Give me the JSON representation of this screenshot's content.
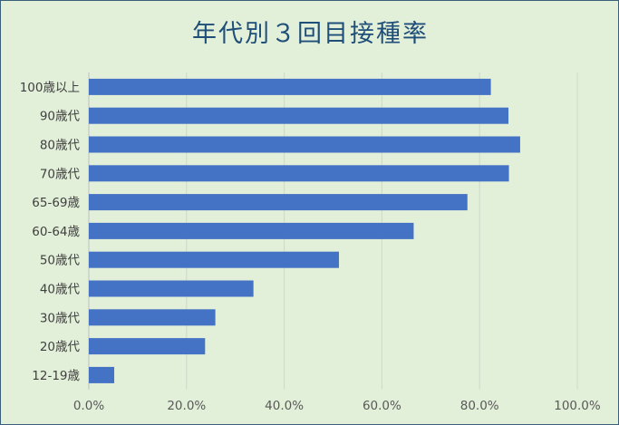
{
  "chart_data": {
    "type": "bar",
    "orientation": "horizontal",
    "title": "年代別３回目接種率",
    "xlabel": "",
    "ylabel": "",
    "categories": [
      "100歳以上",
      "90歳代",
      "80歳代",
      "70歳代",
      "65-69歳",
      "60-64歳",
      "50歳代",
      "40歳代",
      "30歳代",
      "20歳代",
      "12-19歳"
    ],
    "values": [
      82.3,
      85.9,
      88.3,
      86.0,
      77.5,
      66.5,
      51.2,
      33.7,
      25.9,
      23.8,
      5.2
    ],
    "xlim": [
      0,
      100
    ],
    "xticks": [
      "0.0%",
      "20.0%",
      "40.0%",
      "60.0%",
      "80.0%",
      "100.0%"
    ],
    "grid": true,
    "bar_color": "#4472c4",
    "background_color": "#e2efd9",
    "title_color": "#1f4e79"
  }
}
